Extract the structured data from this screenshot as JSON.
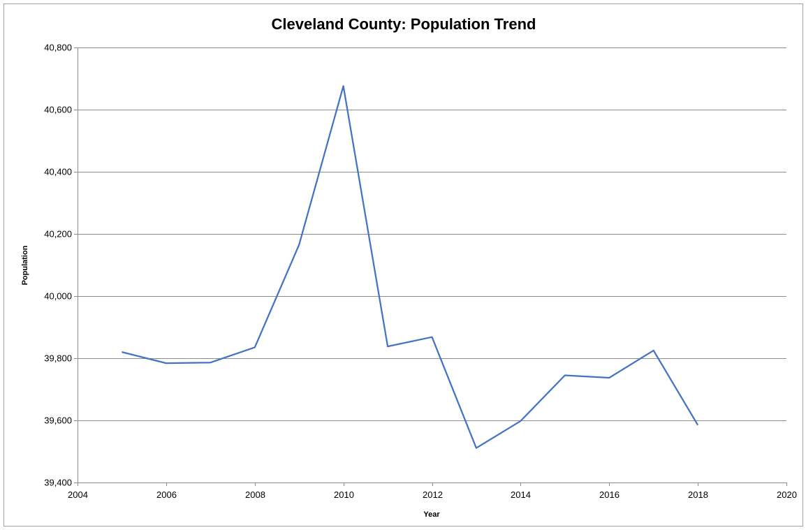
{
  "chart_data": {
    "type": "line",
    "title": "Cleveland County: Population Trend",
    "xlabel": "Year",
    "ylabel": "Population",
    "xlim": [
      2004,
      2020
    ],
    "ylim": [
      39400,
      40800
    ],
    "x_ticks": [
      2004,
      2006,
      2008,
      2010,
      2012,
      2014,
      2016,
      2018,
      2020
    ],
    "y_ticks": [
      39400,
      39600,
      39800,
      40000,
      40200,
      40400,
      40600,
      40800
    ],
    "x_tick_labels": [
      "2004",
      "2006",
      "2008",
      "2010",
      "2012",
      "2014",
      "2016",
      "2018",
      "2020"
    ],
    "y_tick_labels": [
      "39,400",
      "39,600",
      "39,800",
      "40,000",
      "40,200",
      "40,400",
      "40,600",
      "40,800"
    ],
    "grid": "horizontal",
    "legend": "none",
    "series": [
      {
        "color": "#4472C4",
        "x": [
          2005,
          2006,
          2007,
          2008,
          2009,
          2010,
          2011,
          2012,
          2013,
          2014,
          2015,
          2016,
          2017,
          2018
        ],
        "values": [
          39820,
          39784,
          39786,
          39835,
          40165,
          40676,
          39838,
          39868,
          39511,
          39598,
          39745,
          39737,
          39825,
          39585
        ]
      }
    ]
  }
}
